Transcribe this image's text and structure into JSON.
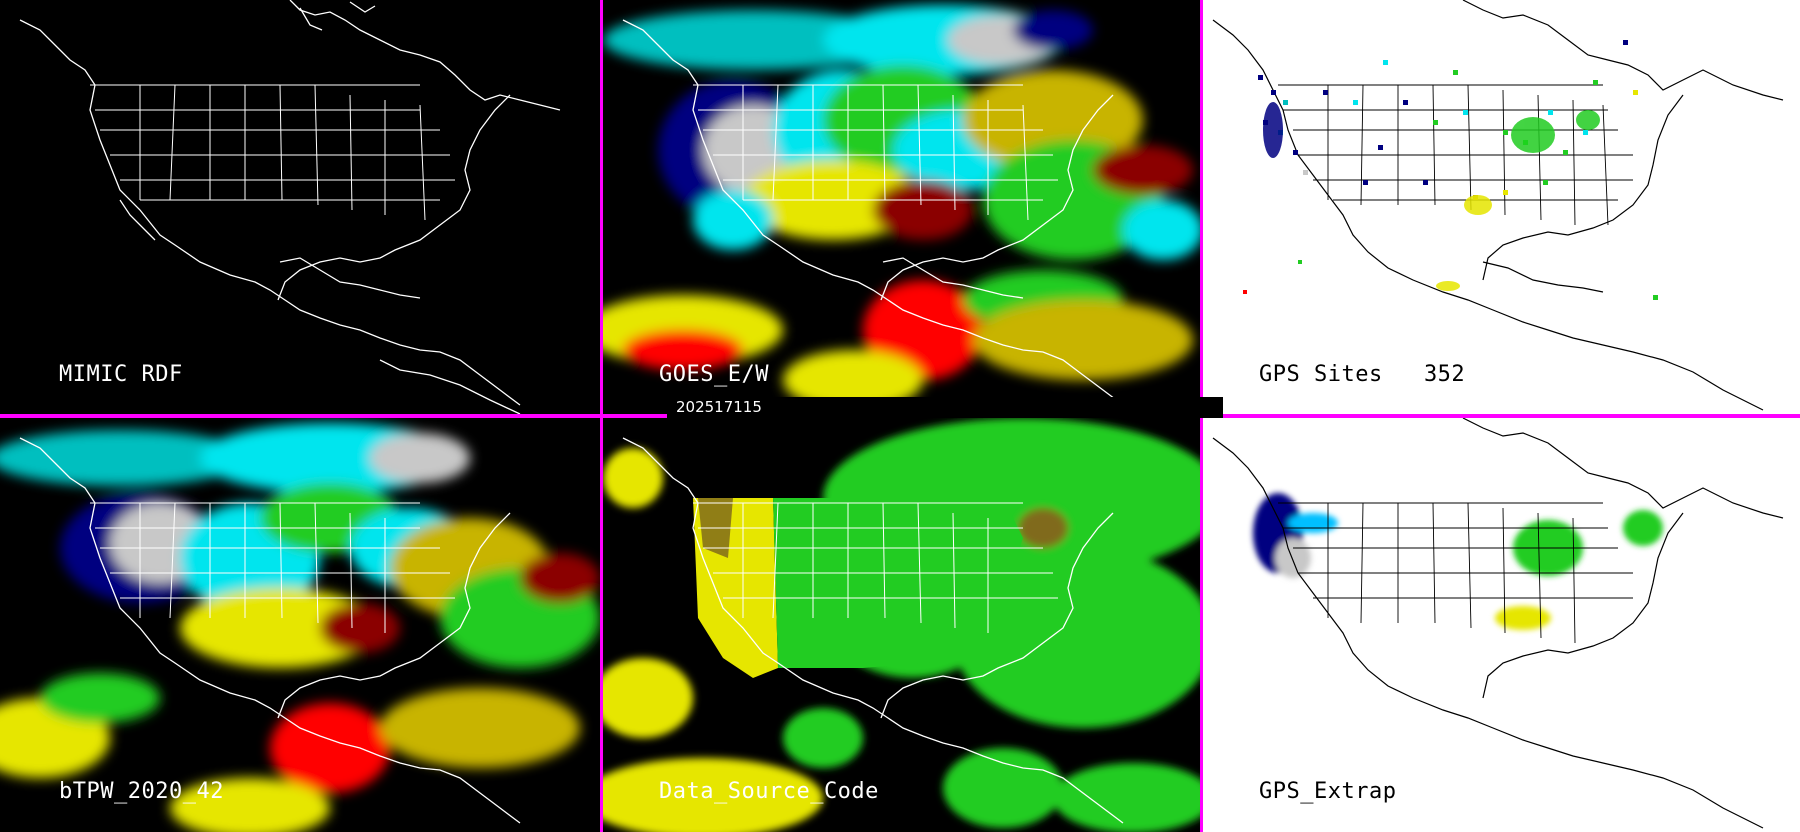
{
  "panels": [
    {
      "id": "mimic",
      "label": "MIMIC RDF",
      "theme": "dark"
    },
    {
      "id": "goes",
      "label": "GOES_E/W",
      "theme": "dark"
    },
    {
      "id": "gps-sites",
      "label": "GPS Sites   352",
      "theme": "light"
    },
    {
      "id": "btpw",
      "label": "bTPW_2020_42",
      "theme": "dark"
    },
    {
      "id": "source",
      "label": "Data_Source_Code",
      "theme": "dark"
    },
    {
      "id": "gps-extrap",
      "label": "GPS_Extrap",
      "theme": "light"
    }
  ],
  "timestamp": "202517115",
  "colors": {
    "divider": "#ff00ff",
    "background_dark": "#000000",
    "background_light": "#ffffff",
    "tpw_scale": [
      "#ff0000",
      "#8b0000",
      "#c8b400",
      "#e6e600",
      "#22cc22",
      "#00ff00",
      "#00e5ee",
      "#00bfff",
      "#000080",
      "#c8c8c8"
    ],
    "source_codes": [
      "#e6e600",
      "#22cc22",
      "#806b1a"
    ]
  }
}
